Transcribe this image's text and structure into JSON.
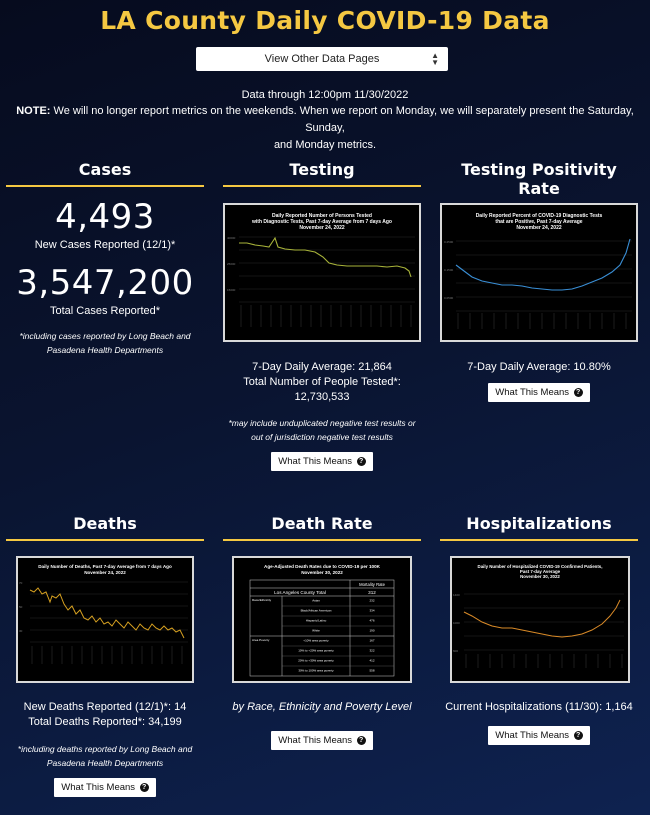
{
  "header": {
    "title": "LA County Daily COVID-19 Data",
    "select_label": "View Other Data Pages",
    "data_through": "Data through 12:00pm 11/30/2022",
    "note_label": "NOTE:",
    "note_text": " We will no longer report metrics on the weekends. When we report on Monday, we will separately present the Saturday, Sunday,",
    "note_text_2": "and Monday metrics."
  },
  "cases": {
    "title": "Cases",
    "new_cases": "4,493",
    "new_cases_label": "New Cases Reported (12/1)*",
    "total_cases": "3,547,200",
    "total_cases_label": "Total Cases Reported*",
    "footnote": "*including cases reported by Long Beach and Pasadena Health Departments"
  },
  "testing": {
    "title": "Testing",
    "chart_title_1": "Daily Reported Number of Persons Tested",
    "chart_title_2": "with Diagnostic Tests, Past 7-day Average from 7 days Ago",
    "chart_title_3": "November 24, 2022",
    "avg": "7-Day Daily Average: 21,864",
    "total_1": "Total Number of People Tested*:",
    "total_2": "12,730,533",
    "footnote": "*may include unduplicated negative test results or out of jurisdiction negative test results",
    "button": "What This Means"
  },
  "positivity": {
    "title": "Testing Positivity Rate",
    "chart_title_1": "Daily Reported Percent of COVID-19 Diagnostic Tests",
    "chart_title_2": "that are Positive, Past 7-day Average",
    "chart_title_3": "November 24, 2022",
    "avg": "7-Day Daily Average: 10.80%",
    "button": "What This Means"
  },
  "deaths": {
    "title": "Deaths",
    "chart_title_1": "Daily Number of Deaths, Past 7-day Average from 7 days Ago",
    "chart_title_2": "November 24, 2022",
    "new_deaths": "New Deaths Reported (12/1)*: 14",
    "total_deaths": "Total Deaths Reported*: 34,199",
    "footnote": "*including deaths reported by Long Beach and Pasadena Health Departments",
    "button": "What This Means"
  },
  "death_rate": {
    "title": "Death Rate",
    "chart_title_1": "Age-Adjusted Death Rates due to COVID-19 per 100K",
    "chart_title_2": "November 30, 2022",
    "col_header": "Mortality Rate",
    "county_total_label": "Los Angeles County Total",
    "county_total_value": "312",
    "group_race": "Race/Ethnicity",
    "group_poverty": "Area Poverty",
    "rows": [
      {
        "label": "Asian",
        "value": "232"
      },
      {
        "label": "Black/African American",
        "value": "334"
      },
      {
        "label": "Hispanic/Latino",
        "value": "476"
      },
      {
        "label": "White",
        "value": "190"
      },
      {
        "label": "<10% area poverty",
        "value": "167"
      },
      {
        "label": "10% to <20% area poverty",
        "value": "322"
      },
      {
        "label": "20% to <30% area poverty",
        "value": "412"
      },
      {
        "label": "30% to 100% area poverty",
        "value": "558"
      }
    ],
    "caption": "by Race, Ethnicity and Poverty Level",
    "button": "What This Means"
  },
  "hospitalizations": {
    "title": "Hospitalizations",
    "chart_title_1": "Daily Number of Hospitalized COVID-19 Confirmed Patients,",
    "chart_title_2": "Past 7-day Average",
    "chart_title_3": "November 30, 2022",
    "current": "Current Hospitalizations (11/30): 1,164",
    "button": "What This Means"
  },
  "colors": {
    "accent": "#f5c842",
    "testing_line": "#a9b43a",
    "positivity_line": "#3a8fd6",
    "deaths_line": "#d6a020",
    "hosp_line": "#d98a28"
  },
  "icons": {
    "select_caret": "up-down-caret-icon",
    "help": "question-circle-icon"
  }
}
